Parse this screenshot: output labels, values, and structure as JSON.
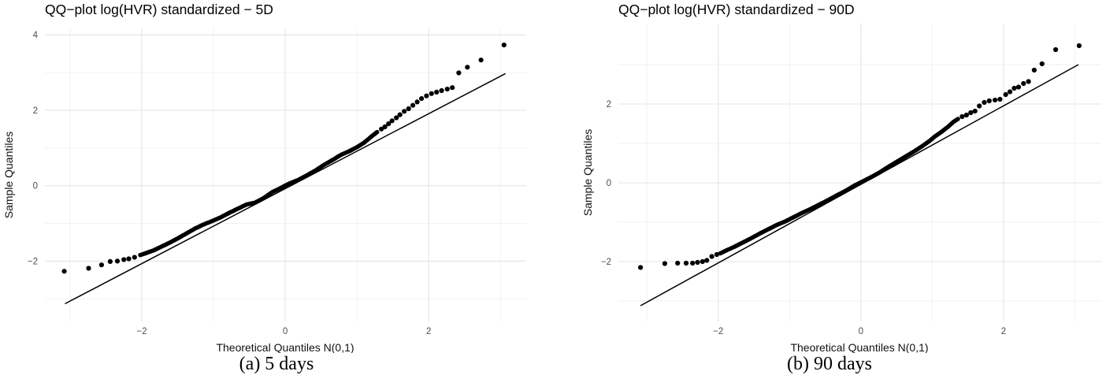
{
  "style": {
    "background": "#ffffff",
    "point_color": "#000000",
    "line_color": "#000000",
    "grid_major_color": "#e4e4e4",
    "grid_minor_color": "#f0f0f0",
    "tick_label_color": "#4d4d4d"
  },
  "chart_data": [
    {
      "type": "scatter",
      "variant": "qq-plot",
      "title": "QQ−plot log(HVR) standardized − 5D",
      "xlabel": "Theoretical Quantiles N(0,1)",
      "ylabel": "Sample Quantiles",
      "caption": "(a) 5 days",
      "xlim": [
        -3.35,
        3.36
      ],
      "ylim": [
        -3.6,
        4.17
      ],
      "xticks": [
        -2,
        0,
        2
      ],
      "yticks": [
        4,
        2,
        0,
        -2
      ],
      "xticks_minor": [
        -3,
        -1,
        1,
        3
      ],
      "yticks_minor": [
        3,
        1,
        -1,
        -3
      ],
      "grid": true,
      "legend": "none",
      "reference_line": {
        "x1": -3.07,
        "y1": -3.13,
        "x2": 3.07,
        "y2": 2.97
      },
      "band": [
        [
          -2.02,
          -1.84
        ],
        [
          -1.93,
          -1.78
        ],
        [
          -1.84,
          -1.72
        ],
        [
          -1.74,
          -1.63
        ],
        [
          -1.62,
          -1.52
        ],
        [
          -1.5,
          -1.4
        ],
        [
          -1.38,
          -1.27
        ],
        [
          -1.26,
          -1.14
        ],
        [
          -1.14,
          -1.03
        ],
        [
          -1.02,
          -0.94
        ],
        [
          -0.9,
          -0.84
        ],
        [
          -0.78,
          -0.72
        ],
        [
          -0.66,
          -0.61
        ],
        [
          -0.54,
          -0.5
        ],
        [
          -0.42,
          -0.45
        ],
        [
          -0.3,
          -0.33
        ],
        [
          -0.18,
          -0.17
        ],
        [
          -0.06,
          -0.06
        ],
        [
          0.06,
          0.06
        ],
        [
          0.18,
          0.15
        ],
        [
          0.3,
          0.27
        ],
        [
          0.42,
          0.4
        ],
        [
          0.54,
          0.55
        ],
        [
          0.66,
          0.68
        ],
        [
          0.78,
          0.82
        ],
        [
          0.9,
          0.92
        ],
        [
          1.0,
          1.02
        ],
        [
          1.1,
          1.14
        ],
        [
          1.2,
          1.3
        ],
        [
          1.28,
          1.42
        ]
      ],
      "points_lower_tail": [
        [
          -3.08,
          -2.27
        ],
        [
          -2.74,
          -2.19
        ],
        [
          -2.56,
          -2.1
        ],
        [
          -2.44,
          -2.01
        ],
        [
          -2.34,
          -2.0
        ],
        [
          -2.25,
          -1.96
        ],
        [
          -2.18,
          -1.94
        ],
        [
          -2.1,
          -1.9
        ]
      ],
      "points_upper_tail": [
        [
          1.34,
          1.5
        ],
        [
          1.39,
          1.56
        ],
        [
          1.44,
          1.64
        ],
        [
          1.49,
          1.72
        ],
        [
          1.55,
          1.8
        ],
        [
          1.6,
          1.88
        ],
        [
          1.66,
          1.97
        ],
        [
          1.72,
          2.04
        ],
        [
          1.78,
          2.13
        ],
        [
          1.84,
          2.22
        ],
        [
          1.9,
          2.31
        ],
        [
          1.97,
          2.38
        ],
        [
          2.04,
          2.44
        ],
        [
          2.11,
          2.48
        ],
        [
          2.18,
          2.52
        ],
        [
          2.26,
          2.56
        ],
        [
          2.33,
          2.6
        ],
        [
          2.42,
          2.99
        ],
        [
          2.54,
          3.14
        ],
        [
          2.73,
          3.33
        ],
        [
          3.05,
          3.73
        ]
      ]
    },
    {
      "type": "scatter",
      "variant": "qq-plot",
      "title": "QQ−plot log(HVR) standardized − 90D",
      "xlabel": "Theoretical Quantiles N(0,1)",
      "ylabel": "Sample Quantiles",
      "caption": "(b) 90 days",
      "xlim": [
        -3.4,
        3.37
      ],
      "ylim": [
        -3.52,
        4.04
      ],
      "xticks": [
        -2,
        0,
        2
      ],
      "yticks": [
        2,
        0,
        -2
      ],
      "xticks_minor": [
        -3,
        -1,
        1,
        3
      ],
      "yticks_minor": [
        3,
        1,
        -1,
        -3
      ],
      "grid": true,
      "legend": "none",
      "reference_line": {
        "x1": -3.09,
        "y1": -3.12,
        "x2": 3.05,
        "y2": 3.0
      },
      "band": [
        [
          -1.97,
          -1.79
        ],
        [
          -1.88,
          -1.71
        ],
        [
          -1.78,
          -1.63
        ],
        [
          -1.66,
          -1.52
        ],
        [
          -1.54,
          -1.41
        ],
        [
          -1.42,
          -1.29
        ],
        [
          -1.3,
          -1.18
        ],
        [
          -1.18,
          -1.07
        ],
        [
          -1.06,
          -0.98
        ],
        [
          -0.94,
          -0.87
        ],
        [
          -0.82,
          -0.76
        ],
        [
          -0.7,
          -0.66
        ],
        [
          -0.58,
          -0.55
        ],
        [
          -0.46,
          -0.44
        ],
        [
          -0.34,
          -0.32
        ],
        [
          -0.22,
          -0.21
        ],
        [
          -0.1,
          -0.08
        ],
        [
          0.02,
          0.03
        ],
        [
          0.14,
          0.14
        ],
        [
          0.26,
          0.26
        ],
        [
          0.38,
          0.4
        ],
        [
          0.5,
          0.53
        ],
        [
          0.62,
          0.66
        ],
        [
          0.74,
          0.79
        ],
        [
          0.86,
          0.93
        ],
        [
          0.96,
          1.06
        ],
        [
          1.04,
          1.18
        ],
        [
          1.12,
          1.28
        ],
        [
          1.22,
          1.42
        ],
        [
          1.3,
          1.55
        ],
        [
          1.36,
          1.62
        ]
      ],
      "points_lower_tail": [
        [
          -3.09,
          -2.15
        ],
        [
          -2.75,
          -2.05
        ],
        [
          -2.57,
          -2.04
        ],
        [
          -2.45,
          -2.04
        ],
        [
          -2.36,
          -2.04
        ],
        [
          -2.29,
          -2.02
        ],
        [
          -2.22,
          -2.0
        ],
        [
          -2.16,
          -1.97
        ],
        [
          -2.09,
          -1.87
        ],
        [
          -2.02,
          -1.82
        ]
      ],
      "points_upper_tail": [
        [
          1.42,
          1.68
        ],
        [
          1.48,
          1.72
        ],
        [
          1.54,
          1.78
        ],
        [
          1.6,
          1.82
        ],
        [
          1.66,
          1.95
        ],
        [
          1.73,
          2.04
        ],
        [
          1.8,
          2.08
        ],
        [
          1.88,
          2.1
        ],
        [
          1.95,
          2.12
        ],
        [
          2.03,
          2.24
        ],
        [
          2.09,
          2.31
        ],
        [
          2.15,
          2.4
        ],
        [
          2.21,
          2.43
        ],
        [
          2.28,
          2.52
        ],
        [
          2.35,
          2.57
        ],
        [
          2.43,
          2.86
        ],
        [
          2.54,
          3.02
        ],
        [
          2.73,
          3.38
        ],
        [
          3.06,
          3.48
        ]
      ]
    }
  ]
}
